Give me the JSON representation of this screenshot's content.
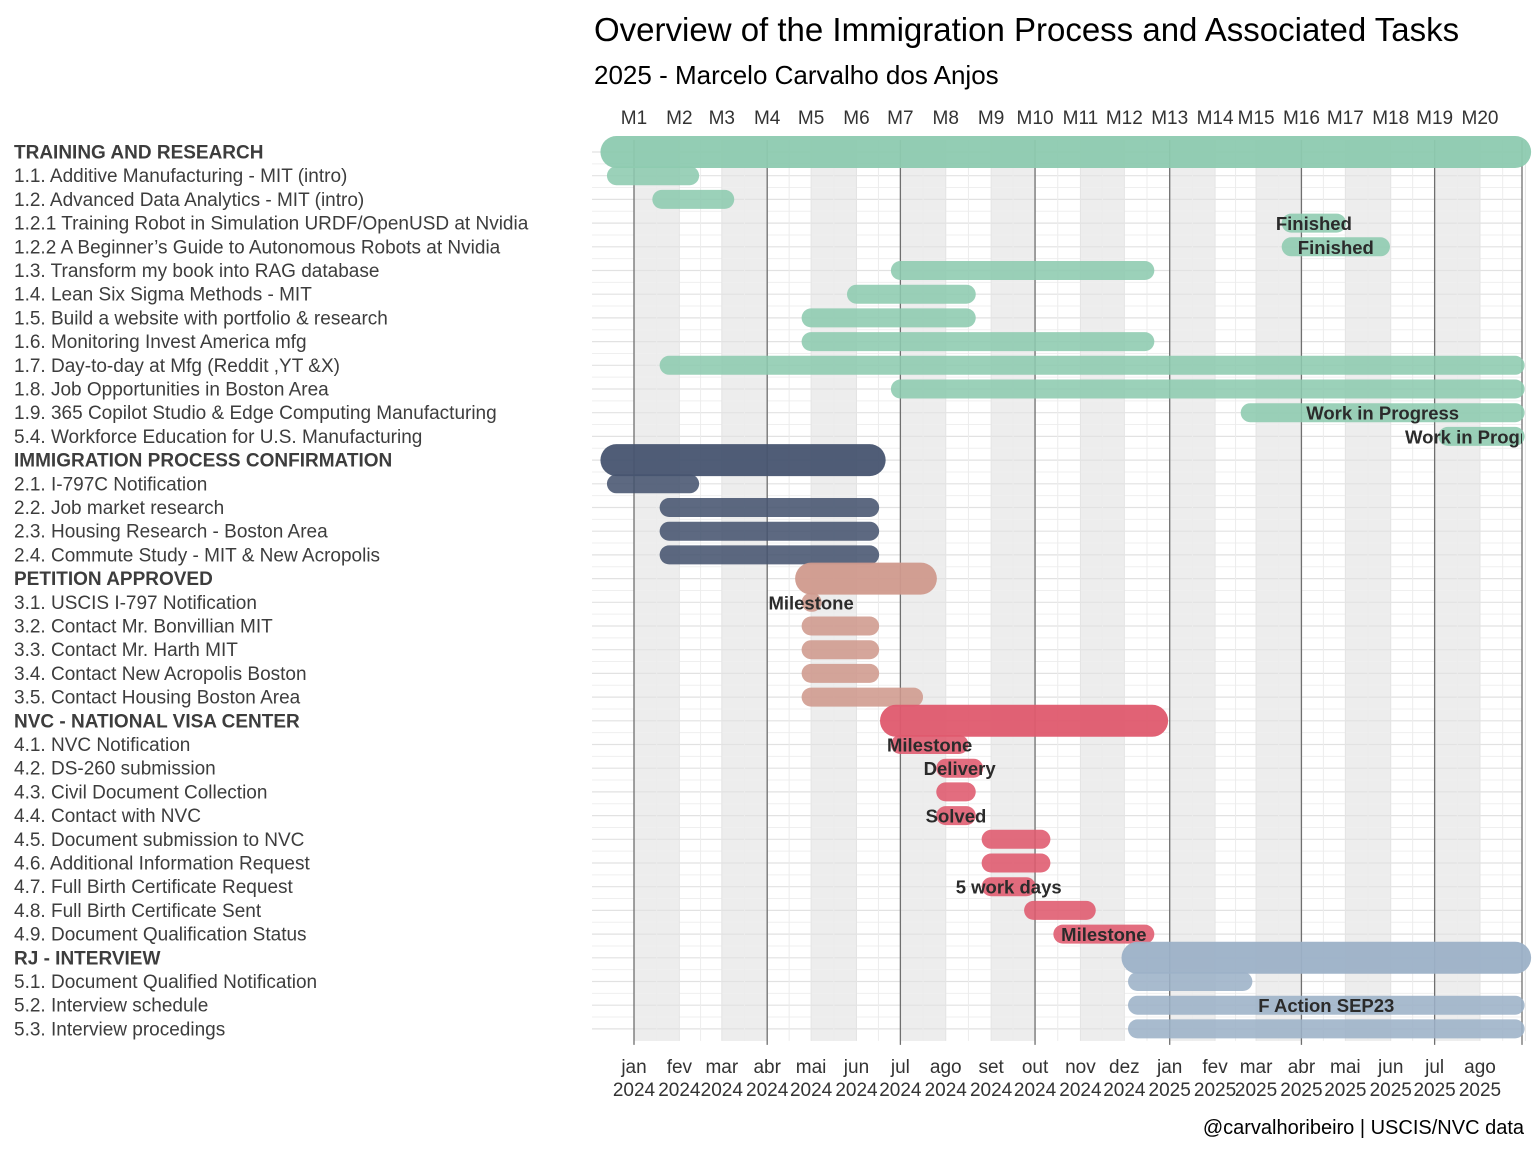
{
  "chart_data": {
    "type": "gantt",
    "title": "Overview of the Immigration Process and Associated Tasks",
    "subtitle": "2025 - Marcelo Carvalho dos Anjos",
    "caption": "@carvalhoribeiro | USCIS/NVC data",
    "top_axis_labels": [
      "M1",
      "M2",
      "M3",
      "M4",
      "M5",
      "M6",
      "M7",
      "M8",
      "M9",
      "M10",
      "M11",
      "M12",
      "M13",
      "M14",
      "M15",
      "M16",
      "M17",
      "M18",
      "M19",
      "M20"
    ],
    "bottom_axis_labels": [
      [
        "jan",
        "2024"
      ],
      [
        "fev",
        "2024"
      ],
      [
        "mar",
        "2024"
      ],
      [
        "abr",
        "2024"
      ],
      [
        "mai",
        "2024"
      ],
      [
        "jun",
        "2024"
      ],
      [
        "jul",
        "2024"
      ],
      [
        "ago",
        "2024"
      ],
      [
        "set",
        "2024"
      ],
      [
        "out",
        "2024"
      ],
      [
        "nov",
        "2024"
      ],
      [
        "dez",
        "2024"
      ],
      [
        "jan",
        "2025"
      ],
      [
        "fev",
        "2025"
      ],
      [
        "mar",
        "2025"
      ],
      [
        "abr",
        "2025"
      ],
      [
        "mai",
        "2025"
      ],
      [
        "jun",
        "2025"
      ],
      [
        "jul",
        "2025"
      ],
      [
        "ago",
        "2025"
      ]
    ],
    "x_start": "2024-01-01",
    "x_end": "2025-09-01",
    "groups": [
      {
        "name": "TRAINING AND RESEARCH",
        "color": "#8ecbb0"
      },
      {
        "name": "IMMIGRATION PROCESS CONFIRMATION",
        "color": "#475570"
      },
      {
        "name": "PETITION APPROVED",
        "color": "#d09a8e"
      },
      {
        "name": "NVC - NATIONAL VISA CENTER",
        "color": "#e05a6e"
      },
      {
        "name": "RJ - INTERVIEW",
        "color": "#9db2c8"
      }
    ],
    "tasks": [
      {
        "label": "TRAINING AND RESEARCH",
        "group": 0,
        "summary": true,
        "start": "2023-12-20",
        "end": "2025-08-25",
        "note": ""
      },
      {
        "label": "1.1. Additive Manufacturing - MIT (intro)",
        "group": 0,
        "start": "2023-12-20",
        "end": "2024-02-08",
        "note": ""
      },
      {
        "label": "1.2. Advanced Data Analytics - MIT (intro)",
        "group": 0,
        "start": "2024-01-20",
        "end": "2024-03-03",
        "note": ""
      },
      {
        "label": "1.2.1 Training Robot in Simulation URDF/OpenUSD at Nvidia",
        "group": 0,
        "start": "2025-03-25",
        "end": "2025-04-25",
        "note": "Finished"
      },
      {
        "label": "1.2.2 A Beginner’s Guide to Autonomous Robots at Nvidia",
        "group": 0,
        "start": "2025-03-25",
        "end": "2025-05-25",
        "note": "Finished"
      },
      {
        "label": "1.3. Transform my book into RAG database",
        "group": 0,
        "start": "2024-07-01",
        "end": "2024-12-15",
        "note": ""
      },
      {
        "label": "1.4. Lean Six Sigma Methods - MIT",
        "group": 0,
        "start": "2024-06-01",
        "end": "2024-08-15",
        "note": ""
      },
      {
        "label": "1.5. Build a website with portfolio & research",
        "group": 0,
        "start": "2024-05-01",
        "end": "2024-08-15",
        "note": ""
      },
      {
        "label": "1.6. Monitoring Invest America mfg",
        "group": 0,
        "start": "2024-05-01",
        "end": "2024-12-15",
        "note": ""
      },
      {
        "label": "1.7. Day-to-day at Mfg (Reddit ,YT &X)",
        "group": 0,
        "start": "2024-01-25",
        "end": "2025-08-25",
        "note": ""
      },
      {
        "label": "1.8. Job Opportunities in Boston Area",
        "group": 0,
        "start": "2024-07-01",
        "end": "2025-08-25",
        "note": ""
      },
      {
        "label": "1.9. 365 Copilot Studio & Edge Computing Manufacturing",
        "group": 0,
        "start": "2025-02-25",
        "end": "2025-08-25",
        "note": "Work in Progress"
      },
      {
        "label": "5.4. Workforce Education for U.S. Manufacturing",
        "group": 0,
        "start": "2025-07-10",
        "end": "2025-08-25",
        "note": "Work in Progress"
      },
      {
        "label": "IMMIGRATION PROCESS CONFIRMATION",
        "group": 1,
        "summary": true,
        "start": "2023-12-20",
        "end": "2024-06-10",
        "note": ""
      },
      {
        "label": "2.1. I-797C Notification",
        "group": 1,
        "start": "2023-12-20",
        "end": "2024-02-08",
        "note": ""
      },
      {
        "label": "2.2. Job market research",
        "group": 1,
        "start": "2024-01-25",
        "end": "2024-06-10",
        "note": ""
      },
      {
        "label": "2.3. Housing Research - Boston Area",
        "group": 1,
        "start": "2024-01-25",
        "end": "2024-06-10",
        "note": ""
      },
      {
        "label": "2.4. Commute Study - MIT & New Acropolis",
        "group": 1,
        "start": "2024-01-25",
        "end": "2024-06-10",
        "note": ""
      },
      {
        "label": "PETITION APPROVED",
        "group": 2,
        "summary": true,
        "start": "2024-05-01",
        "end": "2024-07-15",
        "note": ""
      },
      {
        "label": "3.1. USCIS I-797 Notification",
        "group": 2,
        "start": "2024-05-01",
        "end": "2024-05-01",
        "note": "Milestone"
      },
      {
        "label": "3.2. Contact Mr. Bonvillian MIT",
        "group": 2,
        "start": "2024-05-01",
        "end": "2024-06-10",
        "note": ""
      },
      {
        "label": "3.3. Contact Mr. Harth MIT",
        "group": 2,
        "start": "2024-05-01",
        "end": "2024-06-10",
        "note": ""
      },
      {
        "label": "3.4. Contact New Acropolis Boston",
        "group": 2,
        "start": "2024-05-01",
        "end": "2024-06-10",
        "note": ""
      },
      {
        "label": "3.5. Contact Housing Boston Area",
        "group": 2,
        "start": "2024-05-01",
        "end": "2024-07-10",
        "note": ""
      },
      {
        "label": "NVC - NATIONAL VISA CENTER",
        "group": 3,
        "summary": true,
        "start": "2024-06-28",
        "end": "2024-12-20",
        "note": ""
      },
      {
        "label": "4.1. NVC Notification",
        "group": 3,
        "start": "2024-07-01",
        "end": "2024-08-10",
        "note": "Milestone"
      },
      {
        "label": "4.2. DS-260 submission",
        "group": 3,
        "start": "2024-08-01",
        "end": "2024-08-20",
        "note": "Delivery"
      },
      {
        "label": "4.3. Civil Document Collection",
        "group": 3,
        "start": "2024-08-01",
        "end": "2024-08-15",
        "note": ""
      },
      {
        "label": "4.4. Contact with NVC",
        "group": 3,
        "start": "2024-08-01",
        "end": "2024-08-15",
        "note": "Solved"
      },
      {
        "label": "4.5. Document submission to NVC",
        "group": 3,
        "start": "2024-09-01",
        "end": "2024-10-05",
        "note": ""
      },
      {
        "label": "4.6. Additional Information Request",
        "group": 3,
        "start": "2024-09-01",
        "end": "2024-10-05",
        "note": ""
      },
      {
        "label": "4.7. Full Birth Certificate Request",
        "group": 3,
        "start": "2024-09-01",
        "end": "2024-09-25",
        "note": "5 work days"
      },
      {
        "label": "4.8. Full Birth Certificate Sent",
        "group": 3,
        "start": "2024-09-30",
        "end": "2024-11-05",
        "note": ""
      },
      {
        "label": "4.9. Document Qualification Status",
        "group": 3,
        "start": "2024-10-20",
        "end": "2024-12-15",
        "note": "Milestone"
      },
      {
        "label": "RJ - INTERVIEW",
        "group": 4,
        "summary": true,
        "start": "2024-12-10",
        "end": "2025-08-25",
        "note": ""
      },
      {
        "label": "5.1. Document Qualified Notification",
        "group": 4,
        "start": "2024-12-10",
        "end": "2025-02-20",
        "note": ""
      },
      {
        "label": "5.2. Interview schedule",
        "group": 4,
        "start": "2024-12-10",
        "end": "2025-08-25",
        "note": "F Action SEP23"
      },
      {
        "label": "5.3. Interview procedings",
        "group": 4,
        "start": "2024-12-10",
        "end": "2025-08-25",
        "note": ""
      }
    ]
  }
}
